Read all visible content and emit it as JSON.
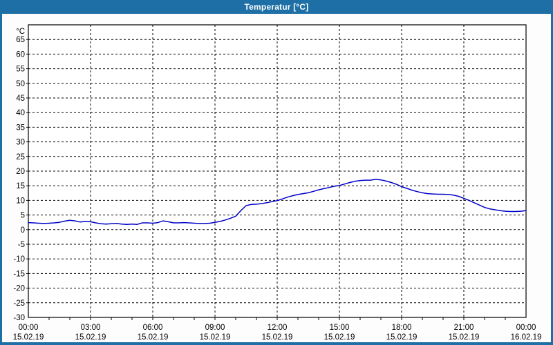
{
  "window": {
    "title": "Temperatur [°C]"
  },
  "colors": {
    "titlebar": "#1d6fa5",
    "frame": "#1d6fa5",
    "plot_background": "#ffffff",
    "grid": "#000000",
    "axis_text": "#000000",
    "curve": "#0000c8"
  },
  "chart_data": {
    "type": "line",
    "title": "Temperatur [°C]",
    "ylabel": "°C",
    "y_unit_label": "°C",
    "ylim": [
      -30,
      70
    ],
    "y_tick_step": 5,
    "y_tick_labels": [
      "65",
      "60",
      "55",
      "50",
      "45",
      "40",
      "35",
      "30",
      "25",
      "20",
      "15",
      "10",
      "5",
      "0",
      "-5",
      "-10",
      "-15",
      "-20",
      "-25",
      "-30"
    ],
    "xlim_hours": [
      0,
      24
    ],
    "x_minor_tick_every_hours": 1,
    "grid": true,
    "legend_position": "none",
    "x_major_ticks": [
      {
        "hour": 0,
        "time": "00:00",
        "date": "15.02.19"
      },
      {
        "hour": 3,
        "time": "03:00",
        "date": "15.02.19"
      },
      {
        "hour": 6,
        "time": "06:00",
        "date": "15.02.19"
      },
      {
        "hour": 9,
        "time": "09:00",
        "date": "15.02.19"
      },
      {
        "hour": 12,
        "time": "12:00",
        "date": "15.02.19"
      },
      {
        "hour": 15,
        "time": "15:00",
        "date": "15.02.19"
      },
      {
        "hour": 18,
        "time": "18:00",
        "date": "15.02.19"
      },
      {
        "hour": 21,
        "time": "21:00",
        "date": "15.02.19"
      },
      {
        "hour": 24,
        "time": "00:00",
        "date": "16.02.19"
      }
    ],
    "series": [
      {
        "name": "Temperatur",
        "color": "#0000c8",
        "x_hours": [
          0,
          0.25,
          0.5,
          0.75,
          1,
          1.25,
          1.5,
          1.75,
          2,
          2.25,
          2.5,
          2.75,
          3,
          3.25,
          3.5,
          3.75,
          4,
          4.25,
          4.5,
          4.75,
          5,
          5.25,
          5.5,
          5.75,
          6,
          6.25,
          6.5,
          6.75,
          7,
          7.25,
          7.5,
          7.75,
          8,
          8.25,
          8.5,
          8.75,
          9,
          9.25,
          9.5,
          9.75,
          10,
          10.25,
          10.5,
          10.75,
          11,
          11.25,
          11.5,
          11.75,
          12,
          12.25,
          12.5,
          12.75,
          13,
          13.25,
          13.5,
          13.75,
          14,
          14.25,
          14.5,
          14.75,
          15,
          15.25,
          15.5,
          15.75,
          16,
          16.25,
          16.5,
          16.75,
          17,
          17.25,
          17.5,
          17.75,
          18,
          18.25,
          18.5,
          18.75,
          19,
          19.25,
          19.5,
          19.75,
          20,
          20.25,
          20.5,
          20.75,
          21,
          21.25,
          21.5,
          21.75,
          22,
          22.25,
          22.5,
          22.75,
          23,
          23.25,
          23.5,
          23.75,
          24
        ],
        "values": [
          2.4,
          2.3,
          2.2,
          2.1,
          2.2,
          2.3,
          2.5,
          2.9,
          3.2,
          3.0,
          2.6,
          2.8,
          2.7,
          2.3,
          2.0,
          1.9,
          2.0,
          2.1,
          1.9,
          1.8,
          1.9,
          1.8,
          2.3,
          2.3,
          2.2,
          2.4,
          3.0,
          2.7,
          2.3,
          2.3,
          2.4,
          2.3,
          2.2,
          2.1,
          2.1,
          2.2,
          2.5,
          2.8,
          3.3,
          3.9,
          4.6,
          6.5,
          8.2,
          8.6,
          8.7,
          8.9,
          9.2,
          9.6,
          9.9,
          10.5,
          11.1,
          11.6,
          12.0,
          12.3,
          12.6,
          13.1,
          13.6,
          14.0,
          14.4,
          14.8,
          15.1,
          15.6,
          16.1,
          16.5,
          16.8,
          16.9,
          16.9,
          17.2,
          17.0,
          16.6,
          16.1,
          15.5,
          14.7,
          14.1,
          13.5,
          13.0,
          12.6,
          12.3,
          12.2,
          12.1,
          12.1,
          12.0,
          11.8,
          11.4,
          10.7,
          10.0,
          9.2,
          8.4,
          7.6,
          7.1,
          6.8,
          6.5,
          6.3,
          6.2,
          6.2,
          6.3,
          6.5
        ]
      }
    ]
  }
}
